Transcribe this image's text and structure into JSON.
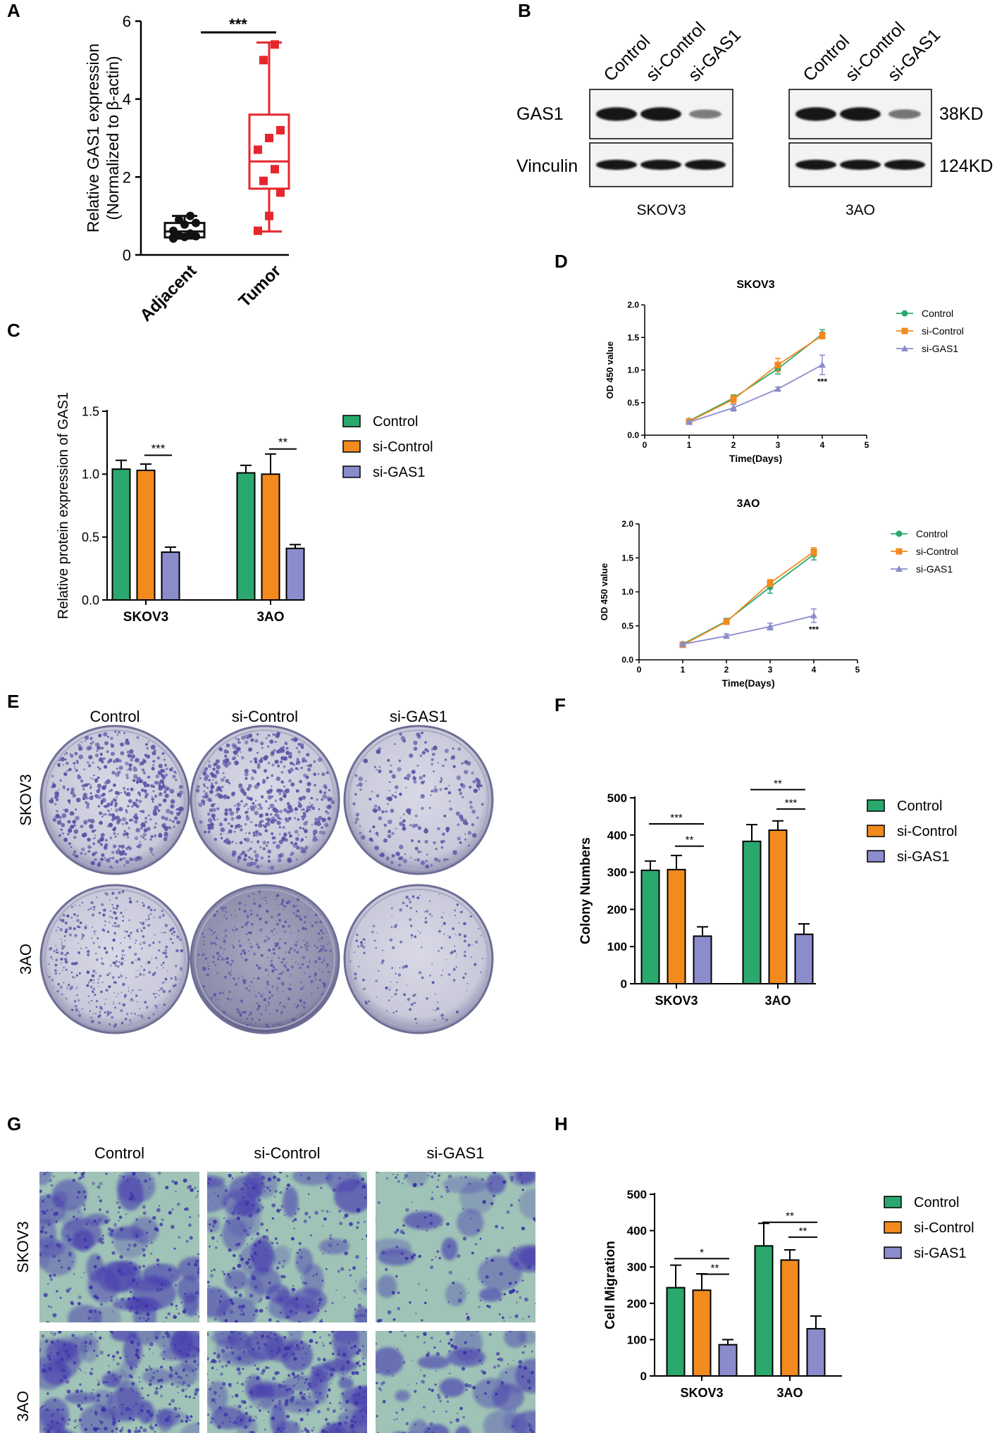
{
  "panel_labels": [
    "A",
    "B",
    "C",
    "D",
    "E",
    "F",
    "G",
    "H"
  ],
  "colors": {
    "control": "#2aa86e",
    "si_control": "#f28a1e",
    "si_gas1": "#8b8ccb",
    "tumor": "#e5272d",
    "adjacent": "#111111",
    "dish": "#5a55a6",
    "transwell_bg": "#9fc3b6",
    "transwell_stain": "#4a3fb0"
  },
  "western_blot": {
    "lanes": [
      "Control",
      "si-Control",
      "si-GAS1"
    ],
    "proteins": [
      "GAS1",
      "Vinculin"
    ],
    "sizes": [
      "38KD",
      "124KD"
    ],
    "cell_lines": [
      "SKOV3",
      "3AO"
    ],
    "band_intensity": {
      "SKOV3": {
        "GAS1": [
          1.0,
          1.0,
          0.35
        ],
        "Vinculin": [
          1.0,
          1.0,
          1.0
        ]
      },
      "3AO": {
        "GAS1": [
          1.0,
          1.0,
          0.4
        ],
        "Vinculin": [
          1.0,
          1.0,
          1.0
        ]
      }
    }
  },
  "plate_images": {
    "columns": [
      "Control",
      "si-Control",
      "si-GAS1"
    ],
    "rows": [
      "SKOV3",
      "3AO"
    ],
    "colony_density": [
      [
        1.0,
        1.0,
        0.45
      ],
      [
        1.0,
        1.0,
        0.4
      ]
    ]
  },
  "transwell_images": {
    "columns": [
      "Control",
      "si-Control",
      "si-GAS1"
    ],
    "rows": [
      "SKOV3",
      "3AO"
    ],
    "stain_density": [
      [
        0.55,
        0.55,
        0.3
      ],
      [
        0.9,
        0.9,
        0.4
      ]
    ]
  },
  "chart_data": [
    {
      "panel": "A",
      "type": "box",
      "categories": [
        "Adjacent",
        "Tumor"
      ],
      "ylabel_line1": "Relative GAS1 expression",
      "ylabel_line2": "(Normalized to β-actin)",
      "ylim": [
        0,
        6
      ],
      "yticks": [
        0,
        2,
        4,
        6
      ],
      "boxes": [
        {
          "name": "Adjacent",
          "min": 0.42,
          "q1": 0.45,
          "median": 0.6,
          "q3": 0.82,
          "max": 1.0,
          "points": [
            0.45,
            0.46,
            0.48,
            0.5,
            0.55,
            0.62,
            0.78,
            0.82,
            0.9,
            1.0,
            0.42
          ]
        },
        {
          "name": "Tumor",
          "min": 0.6,
          "q1": 1.7,
          "median": 2.4,
          "q3": 3.6,
          "max": 5.45,
          "points": [
            0.62,
            1.0,
            1.6,
            1.9,
            2.2,
            2.7,
            3.0,
            3.2,
            5.0,
            5.4
          ]
        }
      ],
      "significance": [
        {
          "from": 0,
          "to": 1,
          "label": "***"
        }
      ]
    },
    {
      "panel": "C",
      "type": "bar",
      "categories": [
        "SKOV3",
        "3AO"
      ],
      "ylabel": "Relative protein expression of GAS1",
      "ylim": [
        0,
        1.5
      ],
      "yticks": [
        0.0,
        0.5,
        1.0,
        1.5
      ],
      "ytick_labels": [
        "0.0",
        "0.5",
        "1.0",
        "1.5"
      ],
      "series": [
        {
          "name": "Control",
          "values": [
            1.04,
            1.01
          ],
          "errors": [
            0.07,
            0.06
          ]
        },
        {
          "name": "si-Control",
          "values": [
            1.03,
            1.0
          ],
          "errors": [
            0.05,
            0.16
          ]
        },
        {
          "name": "si-GAS1",
          "values": [
            0.38,
            0.41
          ],
          "errors": [
            0.04,
            0.03
          ]
        }
      ],
      "legend": [
        "Control",
        "si-Control",
        "si-GAS1"
      ],
      "significance": [
        {
          "group": 0,
          "from": 1,
          "to": 2,
          "label": "***",
          "y": 1.15
        },
        {
          "group": 1,
          "from": 1,
          "to": 2,
          "label": "**",
          "y": 1.2
        }
      ]
    },
    {
      "panel": "D",
      "type": "line",
      "title": "SKOV3",
      "xlabel": "Time(Days)",
      "ylabel": "OD 450 value",
      "xlim": [
        0,
        5
      ],
      "ylim": [
        0,
        2.0
      ],
      "xticks": [
        0,
        1,
        2,
        3,
        4,
        5
      ],
      "yticks": [
        0.0,
        0.5,
        1.0,
        1.5,
        2.0
      ],
      "ytick_labels": [
        "0.0",
        "0.5",
        "1.0",
        "1.5",
        "2.0"
      ],
      "x": [
        1,
        2,
        3,
        4
      ],
      "series": [
        {
          "name": "Control",
          "values": [
            0.22,
            0.57,
            1.02,
            1.55
          ],
          "errors": [
            0.03,
            0.05,
            0.08,
            0.07
          ]
        },
        {
          "name": "si-Control",
          "values": [
            0.21,
            0.55,
            1.08,
            1.53
          ],
          "errors": [
            0.03,
            0.06,
            0.1,
            0.05
          ]
        },
        {
          "name": "si-GAS1",
          "values": [
            0.2,
            0.42,
            0.71,
            1.08
          ],
          "errors": [
            0.02,
            0.05,
            0.03,
            0.15
          ]
        }
      ],
      "legend": [
        "Control",
        "si-Control",
        "si-GAS1"
      ],
      "annotation": "***"
    },
    {
      "panel": "D",
      "type": "line",
      "title": "3AO",
      "xlabel": "Time(Days)",
      "ylabel": "OD 450 value",
      "xlim": [
        0,
        5
      ],
      "ylim": [
        0,
        2.0
      ],
      "xticks": [
        0,
        1,
        2,
        3,
        4,
        5
      ],
      "yticks": [
        0.0,
        0.5,
        1.0,
        1.5,
        2.0
      ],
      "ytick_labels": [
        "0.0",
        "0.5",
        "1.0",
        "1.5",
        "2.0"
      ],
      "x": [
        1,
        2,
        3,
        4
      ],
      "series": [
        {
          "name": "Control",
          "values": [
            0.23,
            0.57,
            1.07,
            1.55
          ],
          "errors": [
            0.03,
            0.04,
            0.09,
            0.08
          ]
        },
        {
          "name": "si-Control",
          "values": [
            0.22,
            0.56,
            1.13,
            1.59
          ],
          "errors": [
            0.03,
            0.04,
            0.05,
            0.06
          ]
        },
        {
          "name": "si-GAS1",
          "values": [
            0.23,
            0.35,
            0.49,
            0.65
          ],
          "errors": [
            0.02,
            0.03,
            0.05,
            0.1
          ]
        }
      ],
      "legend": [
        "Control",
        "si-Control",
        "si-GAS1"
      ],
      "annotation": "***"
    },
    {
      "panel": "F",
      "type": "bar",
      "categories": [
        "SKOV3",
        "3AO"
      ],
      "ylabel": "Colony Numbers",
      "ylim": [
        0,
        500
      ],
      "yticks": [
        0,
        100,
        200,
        300,
        400,
        500
      ],
      "ytick_labels": [
        "0",
        "100",
        "200",
        "300",
        "400",
        "500"
      ],
      "series": [
        {
          "name": "Control",
          "values": [
            305,
            383
          ],
          "errors": [
            25,
            45
          ]
        },
        {
          "name": "si-Control",
          "values": [
            307,
            413
          ],
          "errors": [
            38,
            25
          ]
        },
        {
          "name": "si-GAS1",
          "values": [
            128,
            133
          ],
          "errors": [
            25,
            28
          ]
        }
      ],
      "legend": [
        "Control",
        "si-Control",
        "si-GAS1"
      ],
      "significance": [
        {
          "group": 0,
          "from": 0,
          "to": 2,
          "label": "***",
          "y": 430
        },
        {
          "group": 0,
          "from": 1,
          "to": 2,
          "label": "**",
          "y": 370
        },
        {
          "group": 1,
          "from": 0,
          "to": 2,
          "label": "**",
          "y": 522
        },
        {
          "group": 1,
          "from": 1,
          "to": 2,
          "label": "***",
          "y": 470
        }
      ]
    },
    {
      "panel": "H",
      "type": "bar",
      "categories": [
        "SKOV3",
        "3AO"
      ],
      "ylabel": "Cell Migration",
      "ylim": [
        0,
        500
      ],
      "yticks": [
        0,
        100,
        200,
        300,
        400,
        500
      ],
      "ytick_labels": [
        "0",
        "100",
        "200",
        "300",
        "400",
        "500"
      ],
      "series": [
        {
          "name": "Control",
          "values": [
            243,
            358
          ],
          "errors": [
            62,
            62
          ]
        },
        {
          "name": "si-Control",
          "values": [
            236,
            319
          ],
          "errors": [
            45,
            28
          ]
        },
        {
          "name": "si-GAS1",
          "values": [
            86,
            130
          ],
          "errors": [
            14,
            35
          ]
        }
      ],
      "legend": [
        "Control",
        "si-Control",
        "si-GAS1"
      ],
      "significance": [
        {
          "group": 0,
          "from": 0,
          "to": 2,
          "label": "*",
          "y": 323
        },
        {
          "group": 0,
          "from": 1,
          "to": 2,
          "label": "**",
          "y": 280
        },
        {
          "group": 1,
          "from": 0,
          "to": 2,
          "label": "**",
          "y": 423
        },
        {
          "group": 1,
          "from": 1,
          "to": 2,
          "label": "**",
          "y": 382
        }
      ]
    }
  ]
}
